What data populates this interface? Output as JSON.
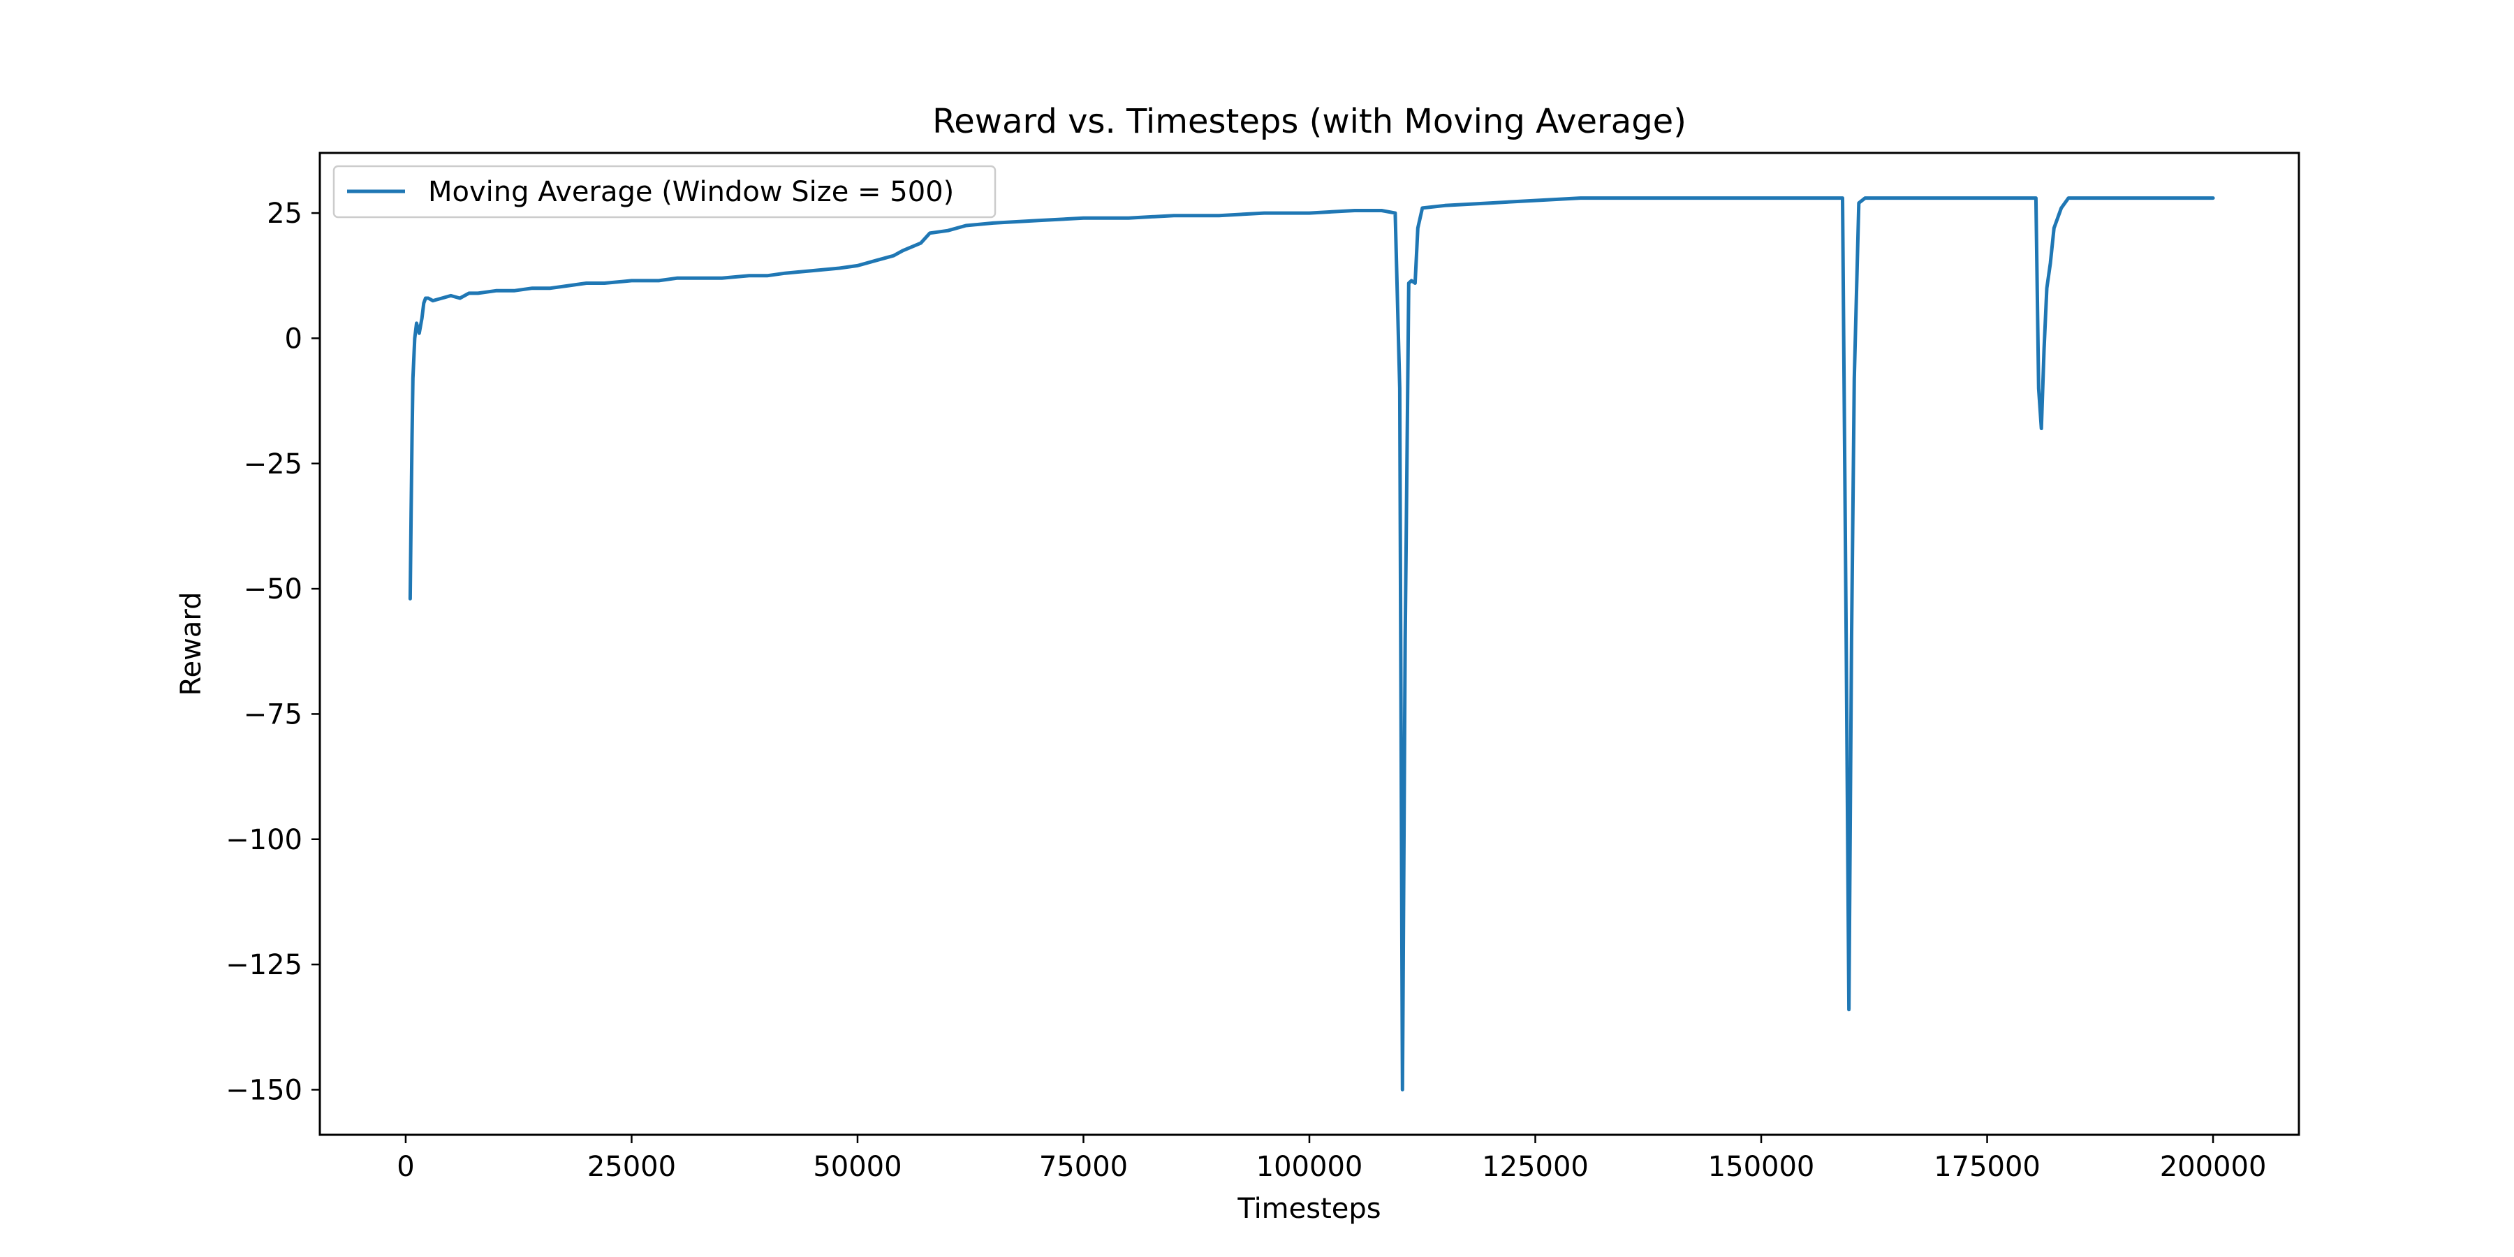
{
  "chart_data": {
    "type": "line",
    "title": "Reward vs. Timesteps (with Moving Average)",
    "xlabel": "Timesteps",
    "ylabel": "Reward",
    "xlim": [
      -9500,
      209500
    ],
    "ylim": [
      -159,
      37
    ],
    "xticks": [
      0,
      25000,
      50000,
      75000,
      100000,
      125000,
      150000,
      175000,
      200000
    ],
    "xtick_labels": [
      "0",
      "25000",
      "50000",
      "75000",
      "100000",
      "125000",
      "150000",
      "175000",
      "200000"
    ],
    "yticks": [
      25,
      0,
      -25,
      -50,
      -75,
      -100,
      -125,
      -150
    ],
    "ytick_labels": [
      "25",
      "0",
      "−25",
      "−50",
      "−75",
      "−100",
      "−125",
      "−150"
    ],
    "grid": false,
    "legend_position": "upper-left",
    "series": [
      {
        "name": "Moving Average (Window Size = 500)",
        "color": "#1f77b4",
        "x": [
          500,
          600,
          700,
          800,
          1000,
          1200,
          1500,
          1800,
          2000,
          2200,
          2500,
          3000,
          4000,
          5000,
          6000,
          7000,
          8000,
          10000,
          12000,
          14000,
          16000,
          18000,
          20000,
          22000,
          25000,
          28000,
          30000,
          33000,
          35000,
          38000,
          40000,
          42000,
          45000,
          48000,
          50000,
          52000,
          54000,
          55000,
          57000,
          58000,
          60000,
          62000,
          65000,
          70000,
          75000,
          80000,
          85000,
          90000,
          95000,
          100000,
          105000,
          108000,
          109500,
          110000,
          110300,
          110600,
          111000,
          111300,
          111700,
          112000,
          112500,
          115000,
          120000,
          125000,
          130000,
          135000,
          140000,
          145000,
          150000,
          155000,
          158000,
          159000,
          159400,
          159700,
          160000,
          160300,
          160800,
          161500,
          165000,
          170000,
          175000,
          179000,
          180000,
          180400,
          180700,
          181000,
          181300,
          181600,
          182000,
          182400,
          182800,
          183200,
          184000,
          190000,
          195000,
          200000
        ],
        "values": [
          -52,
          -35,
          -20,
          -8,
          0,
          3,
          1,
          4,
          7,
          8,
          8,
          7.5,
          8,
          8.5,
          8,
          9,
          9,
          9.5,
          9.5,
          10,
          10,
          10.5,
          11,
          11,
          11.5,
          11.5,
          12,
          12,
          12,
          12.5,
          12.5,
          13,
          13.5,
          14,
          14.5,
          15.5,
          16.5,
          17.5,
          19,
          21,
          21.5,
          22.5,
          23,
          23.5,
          24,
          24,
          24.5,
          24.5,
          25,
          25,
          25.5,
          25.5,
          25,
          -10,
          -150,
          -60,
          11,
          11.5,
          11,
          22,
          26,
          26.5,
          27,
          27.5,
          28,
          28,
          28,
          28,
          28,
          28,
          28,
          28,
          -60,
          -134,
          -60,
          -8,
          27,
          28,
          28,
          28,
          28,
          28,
          28,
          28,
          -10,
          -18,
          -2,
          10,
          15,
          22,
          24,
          26,
          28,
          28,
          28,
          28
        ]
      }
    ]
  }
}
